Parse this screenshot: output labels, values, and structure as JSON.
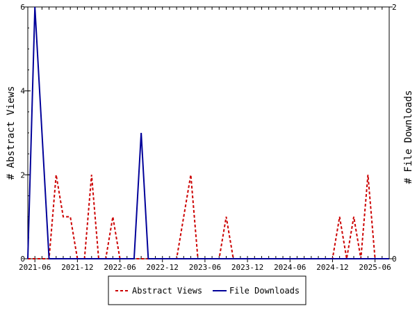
{
  "chart_data": {
    "type": "line",
    "x": [
      "2021-05",
      "2021-06",
      "2021-07",
      "2021-08",
      "2021-09",
      "2021-10",
      "2021-11",
      "2021-12",
      "2022-01",
      "2022-02",
      "2022-03",
      "2022-04",
      "2022-05",
      "2022-06",
      "2022-07",
      "2022-08",
      "2022-09",
      "2022-10",
      "2022-11",
      "2022-12",
      "2023-01",
      "2023-02",
      "2023-03",
      "2023-04",
      "2023-05",
      "2023-06",
      "2023-07",
      "2023-08",
      "2023-09",
      "2023-10",
      "2023-11",
      "2023-12",
      "2024-01",
      "2024-02",
      "2024-03",
      "2024-04",
      "2024-05",
      "2024-06",
      "2024-07",
      "2024-08",
      "2024-09",
      "2024-10",
      "2024-11",
      "2024-12",
      "2025-01",
      "2025-02",
      "2025-03",
      "2025-04",
      "2025-05",
      "2025-06",
      "2025-07",
      "2025-08"
    ],
    "series": [
      {
        "name": "Abstract Views",
        "axis": "left",
        "color": "#cc0000",
        "dashed": true,
        "values": [
          0,
          0,
          0,
          0,
          2,
          1,
          1,
          0,
          0,
          2,
          0,
          0,
          1,
          0,
          0,
          0,
          0,
          0,
          0,
          0,
          0,
          0,
          1,
          2,
          0,
          0,
          0,
          0,
          1,
          0,
          0,
          0,
          0,
          0,
          0,
          0,
          0,
          0,
          0,
          0,
          0,
          0,
          0,
          0,
          1,
          0,
          1,
          0,
          2,
          0,
          0,
          0
        ]
      },
      {
        "name": "File Downloads",
        "axis": "right",
        "color": "#000099",
        "dashed": false,
        "values": [
          0,
          2,
          1,
          0,
          0,
          0,
          0,
          0,
          0,
          0,
          0,
          0,
          0,
          0,
          0,
          0,
          1,
          0,
          0,
          0,
          0,
          0,
          0,
          0,
          0,
          0,
          0,
          0,
          0,
          0,
          0,
          0,
          0,
          0,
          0,
          0,
          0,
          0,
          0,
          0,
          0,
          0,
          0,
          0,
          0,
          0,
          0,
          0,
          0,
          0,
          0,
          0
        ]
      }
    ],
    "x_tick_labels": [
      "2021-06",
      "2021-12",
      "2022-06",
      "2022-12",
      "2023-06",
      "2023-12",
      "2024-06",
      "2024-12",
      "2025-06"
    ],
    "y_left": {
      "label": "# Abstract Views",
      "ylim": [
        0,
        6
      ],
      "ticks": [
        "0",
        "2",
        "4",
        "6"
      ]
    },
    "y_right": {
      "label": "# File Downloads",
      "ylim": [
        0,
        2
      ],
      "ticks": [
        "0",
        "2"
      ]
    },
    "legend": {
      "placement": "bottom-center",
      "entries": [
        "Abstract Views",
        "File Downloads"
      ]
    },
    "grid": false
  }
}
